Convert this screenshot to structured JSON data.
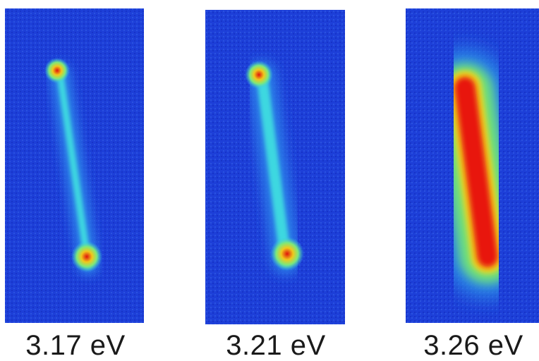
{
  "panels": [
    {
      "energy_label": "3.17 eV"
    },
    {
      "energy_label": "3.21 eV"
    },
    {
      "energy_label": "3.26 eV"
    }
  ],
  "colors": {
    "background_blue": "#1a3cd6",
    "glow_cyan": "#2ec8e8",
    "glow_green": "#7ee87a",
    "glow_yellow": "#f2e21e",
    "hot_red": "#e8160e"
  }
}
